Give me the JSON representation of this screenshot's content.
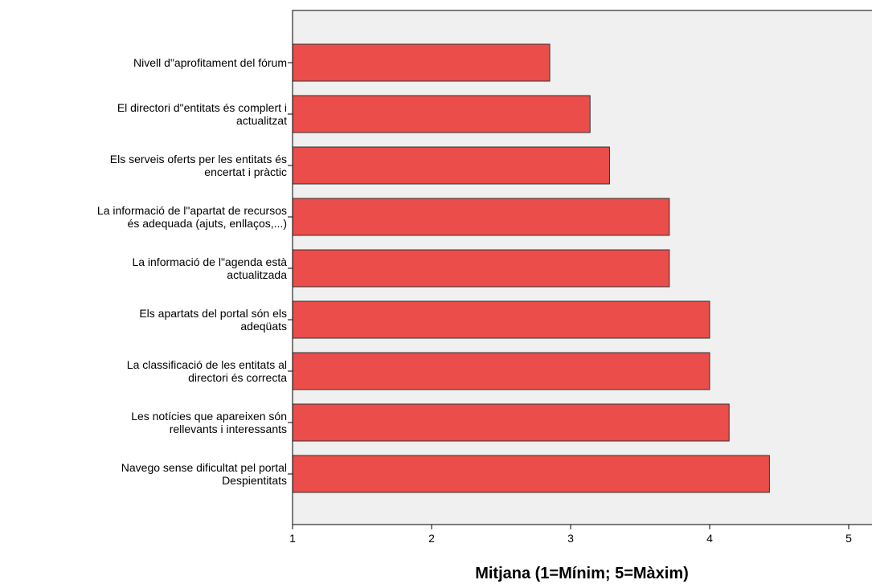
{
  "chart_data": {
    "type": "bar",
    "orientation": "horizontal",
    "categories": [
      [
        "Nivell d\"aprofitament del fórum"
      ],
      [
        "El directori d\"entitats és complert i",
        "actualitzat"
      ],
      [
        "Els serveis oferts per les entitats és",
        "encertat i pràctic"
      ],
      [
        "La informació de l\"apartat de recursos",
        "és adequada  (ajuts, enllaços,...)"
      ],
      [
        "La informació de l\"agenda està",
        "actualitzada"
      ],
      [
        "Els apartats del portal són els",
        "adeqüats"
      ],
      [
        "La classificació de les entitats al",
        "directori és correcta"
      ],
      [
        "Les notícies que apareixen són",
        "rellevants i interessants"
      ],
      [
        "Navego sense dificultat pel portal",
        "Despientitats"
      ]
    ],
    "values": [
      2.85,
      3.14,
      3.28,
      3.71,
      3.71,
      4.0,
      4.0,
      4.14,
      4.43
    ],
    "xlabel": "Mitjana (1=Mínim; 5=Màxim)",
    "ylabel": "",
    "title": "",
    "xlim": [
      1,
      5.15
    ],
    "xticks": [
      "1",
      "2",
      "3",
      "4",
      "5"
    ],
    "grid": false,
    "legend": "none",
    "colors": {
      "bar_fill": "#EA4D4A",
      "bar_stroke": "#333333",
      "plot_bg": "#F0F0F0",
      "axis": "#000000"
    }
  }
}
